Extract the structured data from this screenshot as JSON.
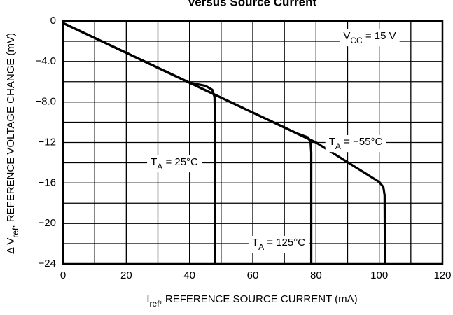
{
  "chart_data": {
    "type": "line",
    "title": "Versus Source Current",
    "x_label": [
      "I",
      "ref",
      ", REFERENCE SOURCE CURRENT (mA)"
    ],
    "y_label": [
      "Δ V",
      "ref",
      ", REFERENCE VOLTAGE CHANGE (mV)"
    ],
    "annotation": [
      "V",
      "CC",
      " = 15 V"
    ],
    "xlim": [
      0,
      120
    ],
    "ylim": [
      -24,
      0
    ],
    "xticks": [
      0,
      20,
      40,
      60,
      80,
      100,
      120
    ],
    "yticks": [
      0,
      {
        "value": -4,
        "label": "−4.0"
      },
      {
        "value": -8,
        "label": "−8.0"
      },
      {
        "value": -12,
        "label": "−12"
      },
      {
        "value": -16,
        "label": "−16"
      },
      {
        "value": -20,
        "label": "−20"
      },
      {
        "value": -24,
        "label": "−24"
      }
    ],
    "grid": true,
    "minor_grid": 2,
    "series": [
      {
        "label": [
          "T",
          "A",
          " = −55°C"
        ],
        "color": "#000000",
        "x": [
          0,
          40,
          80,
          100,
          101.3,
          101.7,
          101.8
        ],
        "y": [
          -0.2,
          -6.1,
          -12,
          -15.9,
          -16.4,
          -17.2,
          -24
        ]
      },
      {
        "label": [
          "T",
          "A",
          " = 25°C"
        ],
        "color": "#000000",
        "x": [
          0,
          40,
          74,
          77.5,
          78.3,
          78.5,
          78.5
        ],
        "y": [
          -0.2,
          -6.1,
          -11.1,
          -11.5,
          -12,
          -13,
          -24
        ]
      },
      {
        "label": [
          "T",
          "A",
          " = 125°C"
        ],
        "color": "#000000",
        "x": [
          0,
          40,
          45,
          47.2,
          47.9,
          48,
          48
        ],
        "y": [
          -0.2,
          -6.1,
          -6.4,
          -6.8,
          -7.5,
          -9,
          -24
        ]
      }
    ]
  }
}
